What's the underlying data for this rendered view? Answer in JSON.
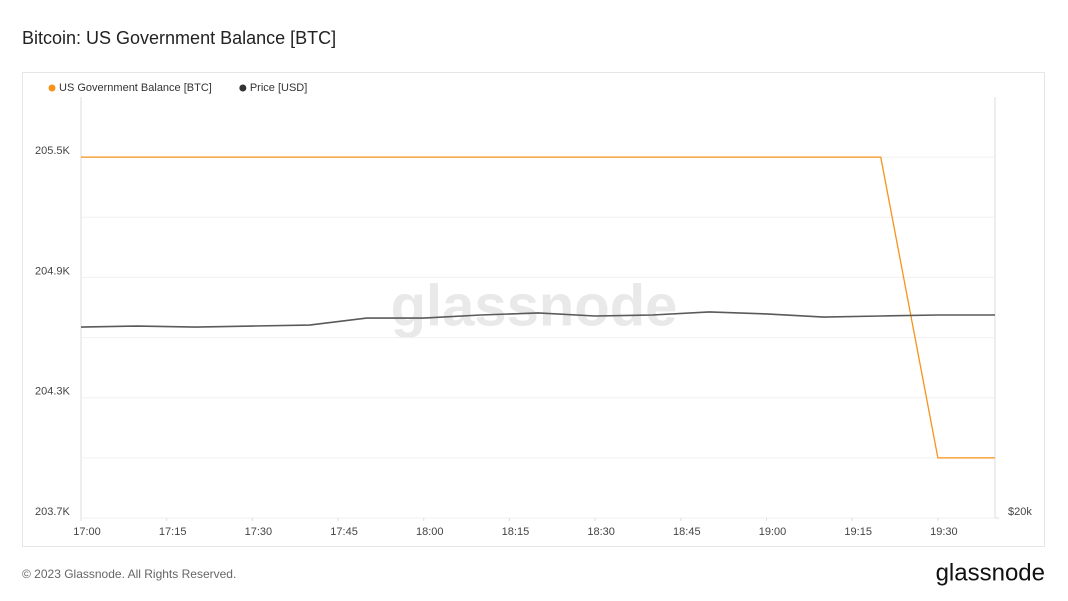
{
  "chart_data": {
    "type": "line",
    "title": "Bitcoin: US Government Balance [BTC]",
    "x": [
      "17:00",
      "17:10",
      "17:20",
      "17:30",
      "17:40",
      "17:50",
      "18:00",
      "18:10",
      "18:20",
      "18:30",
      "18:40",
      "18:50",
      "19:00",
      "19:10",
      "19:20",
      "19:30",
      "19:40"
    ],
    "xlim": [
      "17:00",
      "19:40"
    ],
    "xticks": [
      "17:00",
      "17:15",
      "17:30",
      "17:45",
      "18:00",
      "18:15",
      "18:30",
      "18:45",
      "19:00",
      "19:15",
      "19:30"
    ],
    "series": [
      {
        "name": "US Government Balance [BTC]",
        "color": "#f7931a",
        "values": [
          205500,
          205500,
          205500,
          205500,
          205500,
          205500,
          205500,
          205500,
          205500,
          205500,
          205500,
          205500,
          205500,
          205500,
          205500,
          204000,
          204000
        ]
      },
      {
        "name": "Price [USD]",
        "color": "#5a5a5a",
        "axis": "y2",
        "values": [
          22268,
          22280,
          22268,
          22280,
          22292,
          22375,
          22375,
          22411,
          22435,
          22399,
          22411,
          22447,
          22423,
          22387,
          22399,
          22411,
          22411
        ]
      }
    ],
    "ylim": [
      203700,
      205800
    ],
    "yticks": [
      {
        "value": 203700,
        "label": "203.7K"
      },
      {
        "value": 204300,
        "label": "204.3K"
      },
      {
        "value": 204900,
        "label": "204.9K"
      },
      {
        "value": 205500,
        "label": "205.5K"
      }
    ],
    "y_minor_ticks": [
      204000,
      204600,
      205200
    ],
    "y2lim": [
      20000,
      25000
    ],
    "y2ticks": [
      {
        "value": 20000,
        "label": "$20k"
      }
    ],
    "grid": true,
    "legend": "top-left",
    "watermark": "glassnode",
    "footer": "© 2023 Glassnode. All Rights Reserved.",
    "logo": "glassnode"
  }
}
